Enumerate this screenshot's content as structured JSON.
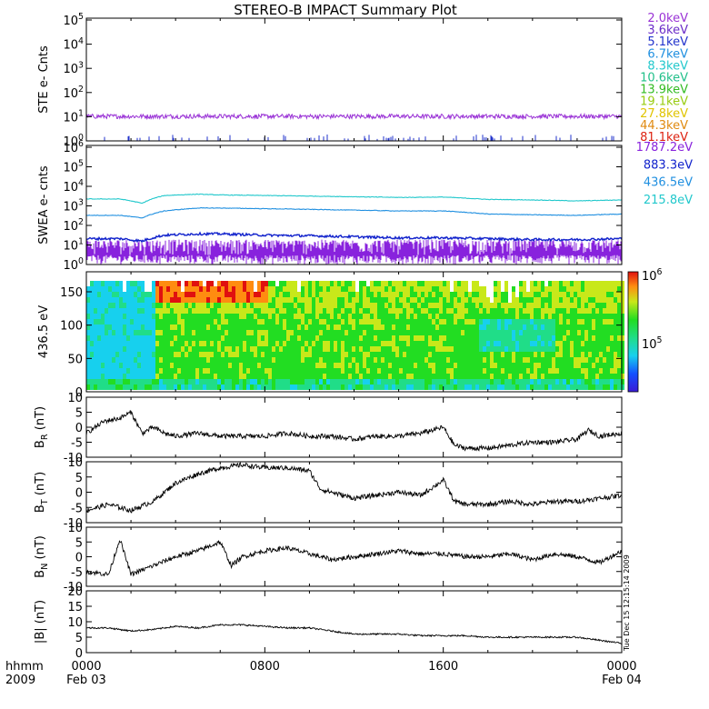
{
  "title": "STEREO-B IMPACT Summary Plot",
  "stamp": "Tue Dec 15 12:15:14 2009",
  "time_axis": {
    "corner_top": "hhmm",
    "corner_bottom": "2009",
    "ticks": [
      {
        "t": 0,
        "hhmm": "0000",
        "date": "Feb 03"
      },
      {
        "t": 8,
        "hhmm": "0800",
        "date": ""
      },
      {
        "t": 16,
        "hhmm": "1600",
        "date": ""
      },
      {
        "t": 24,
        "hhmm": "0000",
        "date": "Feb 04"
      }
    ],
    "range_hours": [
      0,
      24
    ]
  },
  "legend_ste": [
    {
      "label": "2.0keV",
      "color": "#9a33d6"
    },
    {
      "label": "3.6keV",
      "color": "#6a2cc8"
    },
    {
      "label": "5.1keV",
      "color": "#2233cc"
    },
    {
      "label": "6.7keV",
      "color": "#1f8fe0"
    },
    {
      "label": "8.3keV",
      "color": "#22c8cc"
    },
    {
      "label": "10.6keV",
      "color": "#22c08a"
    },
    {
      "label": "13.9keV",
      "color": "#33bb22"
    },
    {
      "label": "19.1keV",
      "color": "#99cc11"
    },
    {
      "label": "27.8keV",
      "color": "#e0c400"
    },
    {
      "label": "44.3keV",
      "color": "#e08a10"
    },
    {
      "label": "81.1keV",
      "color": "#dd2211"
    }
  ],
  "legend_swea": [
    {
      "label": "1787.2eV",
      "color": "#8822dd"
    },
    {
      "label": "883.3eV",
      "color": "#1122cc"
    },
    {
      "label": "436.5eV",
      "color": "#1f8fe0"
    },
    {
      "label": "215.8eV",
      "color": "#22c8cc"
    }
  ],
  "panels": {
    "ste": {
      "ylabel": "STE e- Cnts",
      "ticks": [
        "10^0",
        "10^1",
        "10^2",
        "10^3",
        "10^4",
        "10^5"
      ]
    },
    "swea": {
      "ylabel": "SWEA e- cnts",
      "ticks": [
        "10^0",
        "10^1",
        "10^2",
        "10^3",
        "10^4",
        "10^5",
        "10^6"
      ]
    },
    "pad": {
      "ylabel": "436.5 eV",
      "ticks": [
        "0",
        "50",
        "100",
        "150"
      ],
      "colorbar_ticks": [
        "10^5",
        "10^6"
      ]
    },
    "br": {
      "ylabel": "B_R (nT)",
      "ticks": [
        "-10",
        "-5",
        "0",
        "5",
        "10"
      ]
    },
    "bt": {
      "ylabel": "B_T (nT)",
      "ticks": [
        "-10",
        "-5",
        "0",
        "5",
        "10"
      ]
    },
    "bn": {
      "ylabel": "B_N (nT)",
      "ticks": [
        "-10",
        "-5",
        "0",
        "5",
        "10"
      ]
    },
    "bmag": {
      "ylabel": "|B| (nT)",
      "ticks": [
        "0",
        "5",
        "10",
        "15",
        "20"
      ]
    }
  },
  "chart_data": [
    {
      "type": "line",
      "name": "ste",
      "ylabel": "STE e- Cnts",
      "yscale": "log",
      "ylim": [
        1,
        100000
      ],
      "xlim": [
        0,
        24
      ],
      "series": [
        {
          "name": "2.0keV",
          "x": [
            0,
            24
          ],
          "values": [
            10,
            10
          ]
        },
        {
          "name": "3.6keV",
          "x": [
            0,
            24
          ],
          "values": [
            1,
            1
          ]
        }
      ]
    },
    {
      "type": "line",
      "name": "swea",
      "ylabel": "SWEA e- cnts",
      "yscale": "log",
      "ylim": [
        1,
        1000000
      ],
      "xlim": [
        0,
        24
      ],
      "series": [
        {
          "name": "215.8eV",
          "x": [
            0,
            1.5,
            2.5,
            3.5,
            5,
            6,
            8,
            10,
            12,
            14,
            16,
            18,
            20,
            22,
            24
          ],
          "values": [
            2000,
            2000,
            1200,
            3000,
            3500,
            3200,
            3000,
            2800,
            2600,
            2400,
            2500,
            1900,
            1800,
            1600,
            1800
          ]
        },
        {
          "name": "436.5eV",
          "x": [
            0,
            1.5,
            2.5,
            3.5,
            5,
            6,
            8,
            10,
            12,
            14,
            16,
            18,
            20,
            22,
            24
          ],
          "values": [
            300,
            300,
            220,
            500,
            700,
            700,
            650,
            600,
            550,
            500,
            500,
            350,
            320,
            300,
            350
          ]
        },
        {
          "name": "883.3eV",
          "x": [
            0,
            1.5,
            2.5,
            3.5,
            5,
            6,
            8,
            10,
            12,
            14,
            16,
            18,
            20,
            22,
            24
          ],
          "values": [
            20,
            20,
            15,
            30,
            35,
            35,
            30,
            28,
            25,
            22,
            22,
            20,
            18,
            18,
            20
          ]
        },
        {
          "name": "1787.2eV",
          "x": [
            0,
            24
          ],
          "values": [
            5,
            5
          ]
        }
      ]
    },
    {
      "type": "heatmap",
      "name": "pad",
      "ylabel": "436.5 eV",
      "ylim": [
        0,
        180
      ],
      "xlim": [
        0,
        24
      ],
      "colorbar": {
        "scale": "log",
        "range": [
          10000,
          1000000
        ]
      }
    },
    {
      "type": "line",
      "name": "br",
      "ylabel": "B_R (nT)",
      "ylim": [
        -10,
        10
      ],
      "xlim": [
        0,
        24
      ],
      "series": [
        {
          "name": "B_R",
          "x": [
            0,
            0.8,
            1.5,
            2,
            2.5,
            3,
            3.5,
            4,
            5,
            6,
            7,
            8,
            9,
            10,
            11,
            12,
            13,
            14,
            15,
            16,
            16.5,
            17,
            18,
            19,
            20,
            21,
            22,
            22.5,
            23,
            24
          ],
          "values": [
            -2,
            2,
            3,
            5,
            -2,
            0,
            -2,
            -3,
            -2,
            -3,
            -3,
            -3,
            -2,
            -3,
            -3,
            -4,
            -3,
            -3,
            -2,
            0,
            -6,
            -7,
            -7,
            -6,
            -5,
            -5,
            -4,
            -1,
            -3,
            -2
          ]
        }
      ]
    },
    {
      "type": "line",
      "name": "bt",
      "ylabel": "B_T (nT)",
      "ylim": [
        -10,
        10
      ],
      "xlim": [
        0,
        24
      ],
      "series": [
        {
          "name": "B_T",
          "x": [
            0,
            1,
            2,
            3,
            3.5,
            4,
            5,
            6,
            7,
            8,
            9,
            10,
            10.5,
            11,
            12,
            13,
            14,
            15,
            16,
            16.5,
            17,
            18,
            19,
            20,
            21,
            22,
            23,
            24
          ],
          "values": [
            -6,
            -4,
            -6,
            -3,
            0,
            3,
            6,
            8,
            9,
            8,
            8,
            7,
            1,
            0,
            -2,
            -1,
            0,
            -1,
            4,
            -3,
            -4,
            -4,
            -3,
            -4,
            -3,
            -3,
            -2,
            -1
          ]
        }
      ]
    },
    {
      "type": "line",
      "name": "bn",
      "ylabel": "B_N (nT)",
      "ylim": [
        -10,
        10
      ],
      "xlim": [
        0,
        24
      ],
      "series": [
        {
          "name": "B_N",
          "x": [
            0,
            1,
            1.5,
            2,
            3,
            4,
            5,
            6,
            6.5,
            7,
            8,
            9,
            10,
            11,
            12,
            13,
            14,
            15,
            16,
            17,
            18,
            19,
            20,
            21,
            22,
            23,
            24
          ],
          "values": [
            -5,
            -6,
            6,
            -6,
            -3,
            0,
            2,
            5,
            -3,
            0,
            2,
            3,
            1,
            -1,
            0,
            1,
            2,
            1,
            1,
            0,
            0,
            1,
            -1,
            1,
            0,
            -2,
            2
          ]
        }
      ]
    },
    {
      "type": "line",
      "name": "bmag",
      "ylabel": "|B| (nT)",
      "ylim": [
        0,
        20
      ],
      "xlim": [
        0,
        24
      ],
      "series": [
        {
          "name": "|B|",
          "x": [
            0,
            1,
            2,
            3,
            4,
            5,
            6,
            7,
            8,
            9,
            10,
            11,
            12,
            13,
            14,
            15,
            16,
            17,
            18,
            19,
            20,
            21,
            22,
            23,
            24
          ],
          "values": [
            8,
            8,
            7,
            7.5,
            8.5,
            8,
            9,
            9,
            8.5,
            8,
            8,
            7,
            6,
            6,
            6,
            5.5,
            5.5,
            5.5,
            5,
            5,
            5,
            5,
            5,
            4,
            3
          ]
        }
      ]
    }
  ]
}
